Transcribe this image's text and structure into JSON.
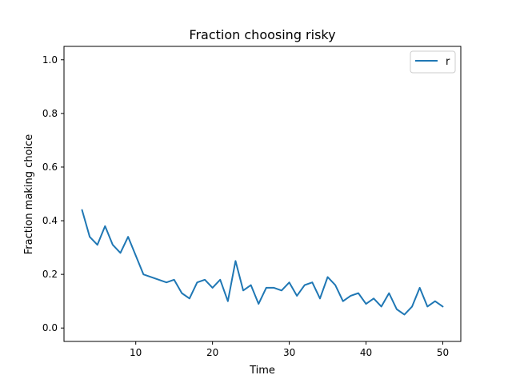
{
  "chart_data": {
    "type": "line",
    "title": "Fraction choosing risky",
    "xlabel": "Time",
    "ylabel": "Fraction making choice",
    "xlim": [
      0.65,
      52.35
    ],
    "ylim": [
      -0.05,
      1.05
    ],
    "xticks": [
      10,
      20,
      30,
      40,
      50
    ],
    "yticks": [
      0.0,
      0.2,
      0.4,
      0.6,
      0.8,
      1.0
    ],
    "xtick_labels": [
      "10",
      "20",
      "30",
      "40",
      "50"
    ],
    "ytick_labels": [
      "0.0",
      "0.2",
      "0.4",
      "0.6",
      "0.8",
      "1.0"
    ],
    "grid": false,
    "legend_position": "top-right",
    "series": [
      {
        "name": "r",
        "color": "#1f77b4",
        "x": [
          3,
          4,
          5,
          6,
          7,
          8,
          9,
          10,
          11,
          14,
          15,
          16,
          17,
          18,
          19,
          20,
          21,
          22,
          23,
          24,
          25,
          26,
          27,
          28,
          29,
          30,
          31,
          32,
          33,
          34,
          35,
          36,
          37,
          38,
          39,
          40,
          41,
          42,
          43,
          44,
          45,
          46,
          47,
          48,
          49,
          50
        ],
        "y": [
          0.44,
          0.34,
          0.31,
          0.38,
          0.31,
          0.28,
          0.34,
          0.27,
          0.2,
          0.17,
          0.18,
          0.13,
          0.11,
          0.17,
          0.18,
          0.15,
          0.18,
          0.1,
          0.25,
          0.14,
          0.16,
          0.09,
          0.15,
          0.15,
          0.14,
          0.17,
          0.12,
          0.16,
          0.17,
          0.11,
          0.19,
          0.16,
          0.1,
          0.12,
          0.13,
          0.09,
          0.11,
          0.08,
          0.13,
          0.07,
          0.05,
          0.08,
          0.15,
          0.08,
          0.1,
          0.08
        ]
      }
    ]
  }
}
